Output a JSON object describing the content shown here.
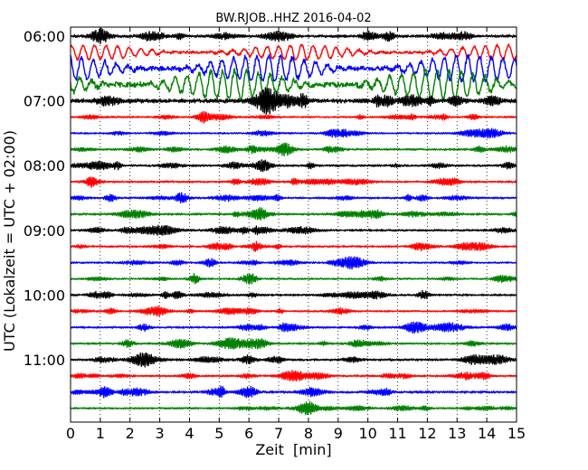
{
  "chart_data": {
    "type": "line",
    "title": "BW.RJOB..HHZ 2016-04-02",
    "xlabel": "Zeit  [min]",
    "ylabel": "UTC (Lokalzeit = UTC + 02:00)",
    "xlim": [
      0,
      15
    ],
    "x_ticks": [
      0,
      1,
      2,
      3,
      4,
      5,
      6,
      7,
      8,
      9,
      10,
      11,
      12,
      13,
      14,
      15
    ],
    "x_tick_labels": [
      "0",
      "1",
      "2",
      "3",
      "4",
      "5",
      "6",
      "7",
      "8",
      "9",
      "10",
      "11",
      "12",
      "13",
      "14",
      "15"
    ],
    "y_tick_labels": [
      {
        "label": "06:00",
        "row": 0
      },
      {
        "label": "07:00",
        "row": 4
      },
      {
        "label": "08:00",
        "row": 8
      },
      {
        "label": "09:00",
        "row": 12
      },
      {
        "label": "10:00",
        "row": 16
      },
      {
        "label": "11:00",
        "row": 20
      }
    ],
    "grid": "vertical dotted",
    "color_cycle": [
      "#000000",
      "#ff0000",
      "#0000ff",
      "#008000"
    ],
    "traces_minutes_each": 15,
    "traces": [
      {
        "start": "06:00",
        "color": "#000000",
        "amplitude": 0.2
      },
      {
        "start": "06:15",
        "color": "#ff0000",
        "amplitude": 0.45
      },
      {
        "start": "06:30",
        "color": "#0000ff",
        "amplitude": 0.8
      },
      {
        "start": "06:45",
        "color": "#008000",
        "amplitude": 0.9
      },
      {
        "start": "07:00",
        "color": "#000000",
        "amplitude": 0.3
      },
      {
        "start": "07:15",
        "color": "#ff0000",
        "amplitude": 0.12
      },
      {
        "start": "07:30",
        "color": "#0000ff",
        "amplitude": 0.12
      },
      {
        "start": "07:45",
        "color": "#008000",
        "amplitude": 0.14
      },
      {
        "start": "08:00",
        "color": "#000000",
        "amplitude": 0.15
      },
      {
        "start": "08:15",
        "color": "#ff0000",
        "amplitude": 0.14
      },
      {
        "start": "08:30",
        "color": "#0000ff",
        "amplitude": 0.14
      },
      {
        "start": "08:45",
        "color": "#008000",
        "amplitude": 0.15
      },
      {
        "start": "09:00",
        "color": "#000000",
        "amplitude": 0.15
      },
      {
        "start": "09:15",
        "color": "#ff0000",
        "amplitude": 0.14
      },
      {
        "start": "09:30",
        "color": "#0000ff",
        "amplitude": 0.12
      },
      {
        "start": "09:45",
        "color": "#008000",
        "amplitude": 0.12
      },
      {
        "start": "10:00",
        "color": "#000000",
        "amplitude": 0.15
      },
      {
        "start": "10:15",
        "color": "#ff0000",
        "amplitude": 0.12
      },
      {
        "start": "10:30",
        "color": "#0000ff",
        "amplitude": 0.14
      },
      {
        "start": "10:45",
        "color": "#008000",
        "amplitude": 0.14
      },
      {
        "start": "11:00",
        "color": "#000000",
        "amplitude": 0.17
      },
      {
        "start": "11:15",
        "color": "#ff0000",
        "amplitude": 0.14
      },
      {
        "start": "11:30",
        "color": "#0000ff",
        "amplitude": 0.17
      },
      {
        "start": "11:45",
        "color": "#008000",
        "amplitude": 0.12
      }
    ]
  }
}
